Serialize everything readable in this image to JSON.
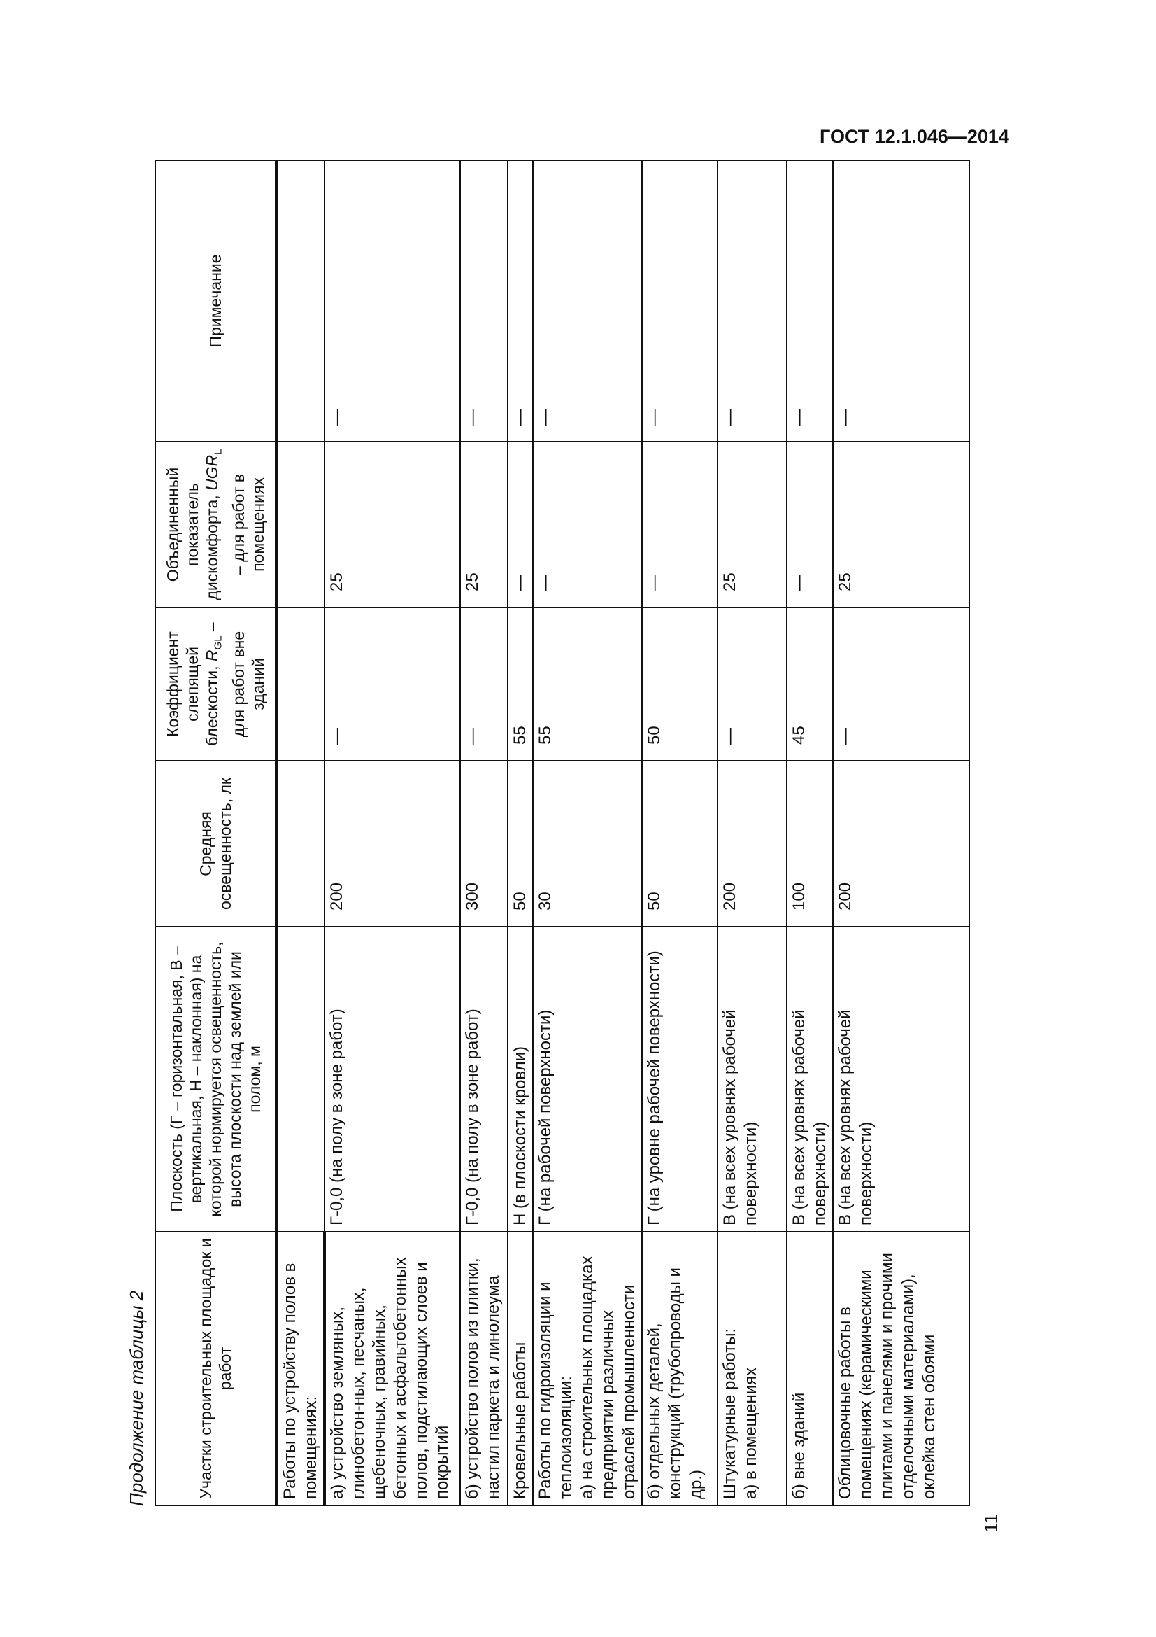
{
  "header_right": "ГОСТ 12.1.046—2014",
  "caption": "Продолжение таблицы 2",
  "page_number": "11",
  "table": {
    "headers": {
      "col1": "Участки строительных площадок и работ",
      "col2": "Плоскость (Г – горизонтальная, В – вертикальная, Н – наклонная) на которой нормируется освещенность, высота плоскости над землей или полом, м",
      "col3": "Средняя освещенность, лк",
      "col4_a": "Коэффициент слепящей блескости, ",
      "col4_sym": "R",
      "col4_sub": "GL",
      "col4_b": " – для работ вне зданий",
      "col5_a": "Объединенный показатель дискомфорта, ",
      "col5_sym": "UGR",
      "col5_sub": "L",
      "col5_b": " – для работ в помещениях",
      "col6": "Примечание"
    },
    "rows": [
      [
        "Работы по устройству полов в помещениях:",
        "",
        "",
        "",
        "",
        ""
      ],
      [
        "а) устройство земляных, глинобетон-ных, песчаных, щебеночных, гравийных, бетонных и асфальтобетонных полов, подстилающих слоев и покрытий",
        "Г-0,0 (на полу в зоне работ)",
        "200",
        "—",
        "25",
        "—"
      ],
      [
        "б) устройство полов из плитки, настил паркета и линолеума",
        "Г-0,0 (на полу в зоне работ)",
        "300",
        "—",
        "25",
        "—"
      ],
      [
        "Кровельные работы",
        "Н (в плоскости кровли)",
        "50",
        "55",
        "—",
        "—"
      ],
      [
        "Работы по гидроизоляции и теплоизоляции:\nа) на строительных площадках предприятии различных отраслей промышленности",
        "Г (на рабочей поверхности)",
        "30",
        "55",
        "—",
        "—"
      ],
      [
        "б) отдельных деталей, конструкций (трубопроводы и др.)",
        "Г (на уровне рабочей поверхности)",
        "50",
        "50",
        "—",
        "—"
      ],
      [
        "Штукатурные работы:\nа) в помещениях",
        "В (на всех уровнях рабочей поверхности)",
        "200",
        "—",
        "25",
        "—"
      ],
      [
        "б) вне зданий",
        "В (на всех уровнях рабочей поверхности)",
        "100",
        "45",
        "—",
        "—"
      ],
      [
        "Облицовочные работы в помещениях (керамическими плитами и панелями и прочими отделочными материалами), оклейка стен обоями",
        "В (на всех уровнях рабочей поверхности)",
        "200",
        "—",
        "25",
        "—"
      ]
    ]
  }
}
